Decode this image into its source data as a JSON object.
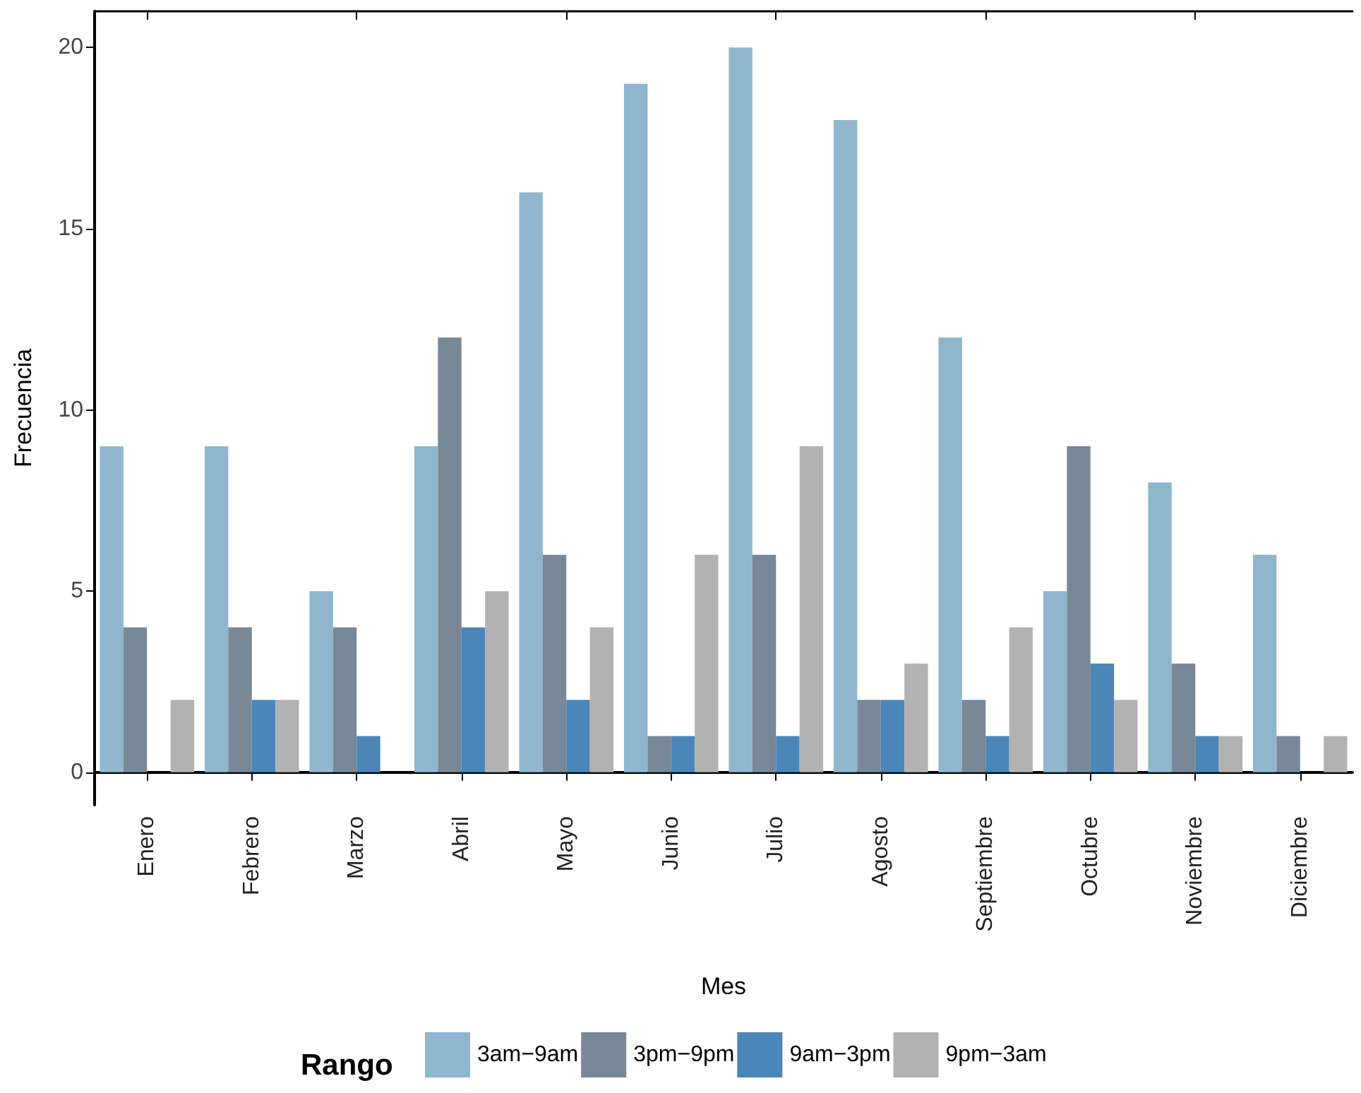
{
  "chart_data": {
    "type": "bar",
    "xlabel": "Mes",
    "ylabel": "Frecuencia",
    "legend_title": "Rango",
    "categories": [
      "Enero",
      "Febrero",
      "Marzo",
      "Abril",
      "Mayo",
      "Junio",
      "Julio",
      "Agosto",
      "Septiembre",
      "Octubre",
      "Noviembre",
      "Diciembre"
    ],
    "series": [
      {
        "name": "3am−9am",
        "color": "#8fb6cc",
        "values": [
          9,
          9,
          5,
          9,
          16,
          19,
          20,
          18,
          12,
          5,
          8,
          6
        ]
      },
      {
        "name": "3pm−9pm",
        "color": "#788897",
        "values": [
          4,
          4,
          4,
          12,
          6,
          1,
          6,
          2,
          2,
          9,
          3,
          1
        ]
      },
      {
        "name": "9am−3pm",
        "color": "#4a86b8",
        "values": [
          0,
          2,
          1,
          4,
          2,
          1,
          1,
          2,
          1,
          3,
          1,
          0
        ]
      },
      {
        "name": "9pm−3am",
        "color": "#b2b2b2",
        "values": [
          2,
          2,
          0,
          5,
          4,
          6,
          9,
          3,
          4,
          2,
          1,
          1
        ]
      }
    ],
    "ylim": [
      -0.9,
      21
    ],
    "yticks": [
      0,
      5,
      10,
      15,
      20
    ],
    "grid": false,
    "legend": "bottom"
  }
}
